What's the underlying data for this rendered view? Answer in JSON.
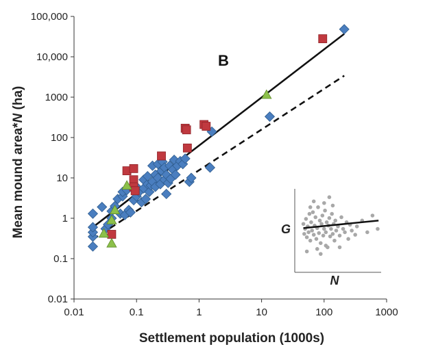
{
  "chart_data": {
    "type": "scatter",
    "panel_label": "B",
    "xlabel": "Settlement population (1000s)",
    "ylabel_parts": [
      "Mean mound area*",
      "N",
      " (ha)"
    ],
    "xscale": "log",
    "yscale": "log",
    "xlim": [
      0.01,
      1000
    ],
    "ylim": [
      0.01,
      100000
    ],
    "x_ticks": [
      0.01,
      0.1,
      1,
      10,
      100,
      1000
    ],
    "x_tick_labels": [
      "0.01",
      "0.1",
      "1",
      "10",
      "100",
      "1000"
    ],
    "y_ticks": [
      0.01,
      0.1,
      1,
      10,
      100,
      1000,
      10000,
      100000
    ],
    "y_tick_labels": [
      "0.01",
      "0.1",
      "1",
      "10",
      "100",
      "1000",
      "10,000",
      "100,000"
    ],
    "colors": {
      "diamond": "#4a7ebf",
      "square": "#c0393f",
      "triangle": "#8cc04a",
      "edge": "#2f5d8f",
      "line": "#111111",
      "inset_point": "#a8a8a8"
    },
    "series": [
      {
        "name": "blue-diamonds",
        "marker": "diamond",
        "points": [
          [
            0.02,
            0.2
          ],
          [
            0.02,
            0.35
          ],
          [
            0.02,
            0.45
          ],
          [
            0.02,
            0.6
          ],
          [
            0.02,
            1.3
          ],
          [
            0.028,
            1.9
          ],
          [
            0.032,
            0.55
          ],
          [
            0.035,
            0.7
          ],
          [
            0.04,
            1.0
          ],
          [
            0.04,
            1.5
          ],
          [
            0.045,
            2.0
          ],
          [
            0.05,
            3.0
          ],
          [
            0.055,
            1.3
          ],
          [
            0.06,
            3.5
          ],
          [
            0.06,
            4.5
          ],
          [
            0.065,
            1.2
          ],
          [
            0.07,
            5.0
          ],
          [
            0.075,
            1.6
          ],
          [
            0.08,
            1.4
          ],
          [
            0.085,
            6.0
          ],
          [
            0.09,
            2.8
          ],
          [
            0.1,
            3.5
          ],
          [
            0.1,
            6.0
          ],
          [
            0.11,
            4.5
          ],
          [
            0.12,
            2.5
          ],
          [
            0.13,
            5.5
          ],
          [
            0.13,
            9.0
          ],
          [
            0.14,
            3.0
          ],
          [
            0.15,
            7.0
          ],
          [
            0.15,
            11.0
          ],
          [
            0.16,
            4.5
          ],
          [
            0.17,
            6.5
          ],
          [
            0.18,
            8.0
          ],
          [
            0.18,
            20.0
          ],
          [
            0.2,
            6.0
          ],
          [
            0.2,
            12.0
          ],
          [
            0.22,
            10.0
          ],
          [
            0.22,
            22.0
          ],
          [
            0.24,
            7.0
          ],
          [
            0.25,
            15.0
          ],
          [
            0.26,
            25.0
          ],
          [
            0.28,
            9.0
          ],
          [
            0.28,
            18.0
          ],
          [
            0.3,
            4.0
          ],
          [
            0.3,
            12.0
          ],
          [
            0.32,
            7.5
          ],
          [
            0.34,
            20.0
          ],
          [
            0.35,
            9.5
          ],
          [
            0.38,
            16.0
          ],
          [
            0.4,
            28.0
          ],
          [
            0.42,
            12.0
          ],
          [
            0.45,
            20.0
          ],
          [
            0.5,
            26.0
          ],
          [
            0.55,
            22.0
          ],
          [
            0.6,
            30.0
          ],
          [
            0.7,
            8.0
          ],
          [
            0.75,
            10.0
          ],
          [
            1.6,
            140.0
          ],
          [
            1.5,
            18.0
          ],
          [
            13.5,
            330.0
          ],
          [
            210.0,
            48000.0
          ]
        ]
      },
      {
        "name": "red-squares",
        "marker": "square",
        "points": [
          [
            0.04,
            0.4
          ],
          [
            0.07,
            15.0
          ],
          [
            0.09,
            17.0
          ],
          [
            0.09,
            9.0
          ],
          [
            0.09,
            6.0
          ],
          [
            0.095,
            4.8
          ],
          [
            0.25,
            35.0
          ],
          [
            0.6,
            170.0
          ],
          [
            0.63,
            155.0
          ],
          [
            0.65,
            55.0
          ],
          [
            1.2,
            210.0
          ],
          [
            1.3,
            190.0
          ],
          [
            95.0,
            28000.0
          ]
        ]
      },
      {
        "name": "green-triangles",
        "marker": "triangle",
        "points": [
          [
            0.03,
            0.42
          ],
          [
            0.04,
            0.24
          ],
          [
            0.04,
            0.9
          ],
          [
            0.045,
            1.6
          ],
          [
            0.07,
            6.5
          ],
          [
            12.0,
            1150.0
          ]
        ]
      }
    ],
    "fit_lines": [
      {
        "name": "solid-fit",
        "style": "solid",
        "x": [
          0.02,
          210.0
        ],
        "y": [
          0.6,
          37000.0
        ]
      },
      {
        "name": "dashed-fit",
        "style": "dashed",
        "x": [
          0.02,
          210.0
        ],
        "y": [
          0.3,
          3400.0
        ]
      }
    ],
    "inset": {
      "xlabel": "N",
      "ylabel": "G",
      "points": [
        [
          0.1,
          0.58
        ],
        [
          0.11,
          0.46
        ],
        [
          0.12,
          0.52
        ],
        [
          0.13,
          0.64
        ],
        [
          0.14,
          0.42
        ],
        [
          0.15,
          0.55
        ],
        [
          0.16,
          0.48
        ],
        [
          0.17,
          0.7
        ],
        [
          0.18,
          0.38
        ],
        [
          0.19,
          0.6
        ],
        [
          0.2,
          0.5
        ],
        [
          0.21,
          0.72
        ],
        [
          0.22,
          0.45
        ],
        [
          0.23,
          0.56
        ],
        [
          0.24,
          0.66
        ],
        [
          0.25,
          0.4
        ],
        [
          0.26,
          0.53
        ],
        [
          0.27,
          0.78
        ],
        [
          0.28,
          0.47
        ],
        [
          0.29,
          0.62
        ],
        [
          0.3,
          0.35
        ],
        [
          0.31,
          0.58
        ],
        [
          0.32,
          0.68
        ],
        [
          0.33,
          0.44
        ],
        [
          0.34,
          0.52
        ],
        [
          0.35,
          0.74
        ],
        [
          0.36,
          0.48
        ],
        [
          0.37,
          0.6
        ],
        [
          0.38,
          0.3
        ],
        [
          0.39,
          0.56
        ],
        [
          0.4,
          0.65
        ],
        [
          0.41,
          0.43
        ],
        [
          0.42,
          0.52
        ],
        [
          0.43,
          0.7
        ],
        [
          0.44,
          0.46
        ],
        [
          0.45,
          0.58
        ],
        [
          0.46,
          0.38
        ],
        [
          0.47,
          0.62
        ],
        [
          0.48,
          0.5
        ],
        [
          0.5,
          0.55
        ],
        [
          0.52,
          0.44
        ],
        [
          0.54,
          0.66
        ],
        [
          0.56,
          0.52
        ],
        [
          0.58,
          0.48
        ],
        [
          0.6,
          0.6
        ],
        [
          0.62,
          0.4
        ],
        [
          0.64,
          0.57
        ],
        [
          0.66,
          0.5
        ],
        [
          0.7,
          0.45
        ],
        [
          0.72,
          0.55
        ],
        [
          0.78,
          0.62
        ],
        [
          0.84,
          0.48
        ],
        [
          0.9,
          0.68
        ],
        [
          0.96,
          0.52
        ],
        [
          0.14,
          0.25
        ],
        [
          0.22,
          0.85
        ],
        [
          0.26,
          0.28
        ],
        [
          0.34,
          0.83
        ],
        [
          0.4,
          0.9
        ],
        [
          0.3,
          0.22
        ],
        [
          0.18,
          0.78
        ],
        [
          0.44,
          0.8
        ],
        [
          0.36,
          0.32
        ],
        [
          0.52,
          0.3
        ]
      ],
      "fit": {
        "x": [
          0.1,
          0.97
        ],
        "y": [
          0.53,
          0.62
        ]
      }
    }
  }
}
